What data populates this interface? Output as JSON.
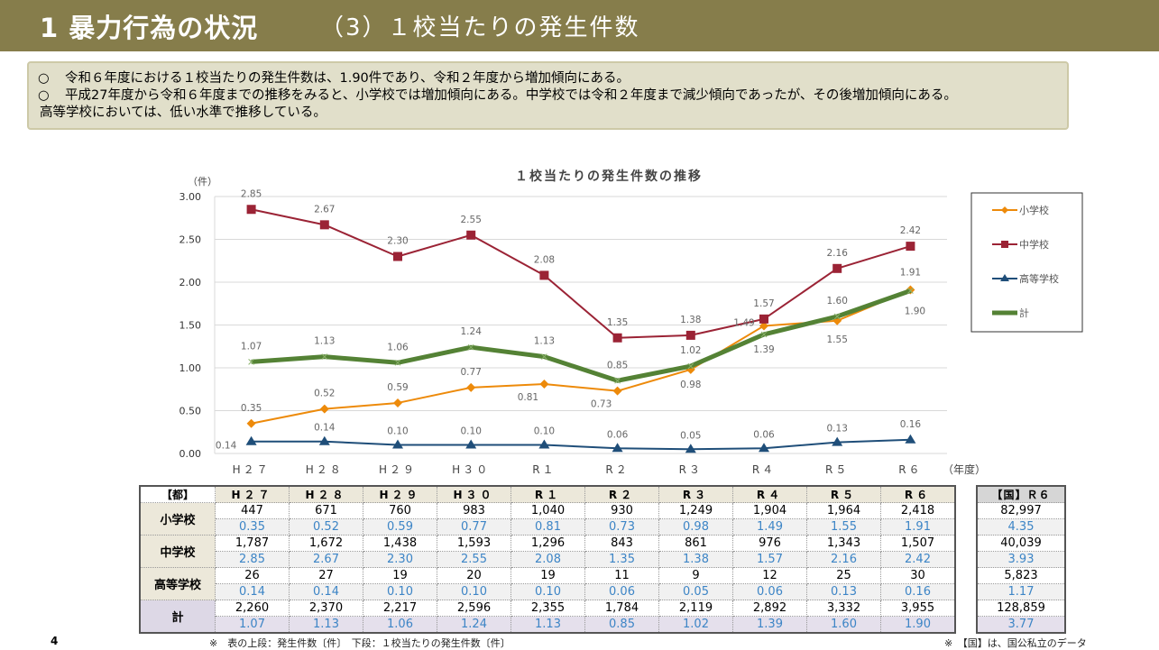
{
  "header": {
    "main_title": "1 暴力行為の状況",
    "sub_title": "（3）１校当たりの発生件数"
  },
  "summary": {
    "bullet": "○",
    "lines": [
      "令和６年度における１校当たりの発生件数は、1.90件であり、令和２年度から増加傾向にある。",
      "平成27年度から令和６年度までの推移をみると、小学校では増加傾向にある。中学校では令和２年度まで減少傾向であったが、その後増加傾向にある。",
      "高等学校においては、低い水準で推移している。"
    ]
  },
  "chart_data": {
    "type": "line",
    "title": "１校当たりの発生件数の推移",
    "ylabel": "（件）",
    "xlabel": "（年度）",
    "categories": [
      "H27",
      "H28",
      "H29",
      "H30",
      "R1",
      "R2",
      "R3",
      "R4",
      "R5",
      "R6"
    ],
    "category_labels": [
      "H２７",
      "H２８",
      "H２９",
      "H３０",
      "R１",
      "R２",
      "R３",
      "R４",
      "R５",
      "R６"
    ],
    "ylim": [
      0,
      3
    ],
    "yticks": [
      "0.00",
      "0.50",
      "1.00",
      "1.50",
      "2.00",
      "2.50",
      "3.00"
    ],
    "grid": true,
    "legend_position": "right",
    "series": [
      {
        "name": "小学校",
        "color": "#ed8a0a",
        "marker": "diamond",
        "values": [
          0.35,
          0.52,
          0.59,
          0.77,
          0.81,
          0.73,
          0.98,
          1.49,
          1.55,
          1.91
        ]
      },
      {
        "name": "中学校",
        "color": "#9b2335",
        "marker": "square",
        "values": [
          2.85,
          2.67,
          2.3,
          2.55,
          2.08,
          1.35,
          1.38,
          1.57,
          2.16,
          2.42
        ]
      },
      {
        "name": "高等学校",
        "color": "#1f4e79",
        "marker": "triangle",
        "values": [
          0.14,
          0.14,
          0.1,
          0.1,
          0.1,
          0.06,
          0.05,
          0.06,
          0.13,
          0.16
        ]
      },
      {
        "name": "計",
        "color": "#548235",
        "marker": "x",
        "values": [
          1.07,
          1.13,
          1.06,
          1.24,
          1.13,
          0.85,
          1.02,
          1.39,
          1.6,
          1.9
        ]
      }
    ]
  },
  "table": {
    "corner": "【都】",
    "columns": [
      "H２７",
      "H２８",
      "H２９",
      "H３０",
      "R１",
      "R２",
      "R３",
      "R４",
      "R５",
      "R６"
    ],
    "rows": [
      {
        "label": "小学校",
        "counts": [
          "447",
          "671",
          "760",
          "983",
          "1,040",
          "930",
          "1,249",
          "1,904",
          "1,964",
          "2,418"
        ],
        "rates": [
          "0.35",
          "0.52",
          "0.59",
          "0.77",
          "0.81",
          "0.73",
          "0.98",
          "1.49",
          "1.55",
          "1.91"
        ]
      },
      {
        "label": "中学校",
        "counts": [
          "1,787",
          "1,672",
          "1,438",
          "1,593",
          "1,296",
          "843",
          "861",
          "976",
          "1,343",
          "1,507"
        ],
        "rates": [
          "2.85",
          "2.67",
          "2.30",
          "2.55",
          "2.08",
          "1.35",
          "1.38",
          "1.57",
          "2.16",
          "2.42"
        ]
      },
      {
        "label": "高等学校",
        "counts": [
          "26",
          "27",
          "19",
          "20",
          "19",
          "11",
          "9",
          "12",
          "25",
          "30"
        ],
        "rates": [
          "0.14",
          "0.14",
          "0.10",
          "0.10",
          "0.10",
          "0.06",
          "0.05",
          "0.06",
          "0.13",
          "0.16"
        ]
      },
      {
        "label": "計",
        "counts": [
          "2,260",
          "2,370",
          "2,217",
          "2,596",
          "2,355",
          "1,784",
          "2,119",
          "2,892",
          "3,332",
          "3,955"
        ],
        "rates": [
          "1.07",
          "1.13",
          "1.06",
          "1.24",
          "1.13",
          "0.85",
          "1.02",
          "1.39",
          "1.60",
          "1.90"
        ]
      }
    ]
  },
  "national_table": {
    "header": "【国】Ｒ６",
    "values": [
      "82,997",
      "4.35",
      "40,039",
      "3.93",
      "5,823",
      "1.17",
      "128,859",
      "3.77"
    ]
  },
  "footer": {
    "page_number": "4",
    "table_note": "※　表の上段：発生件数〔件〕　下段：１校当たりの発生件数〔件〕",
    "national_note": "※　【国】は、国公私立のデータ"
  }
}
